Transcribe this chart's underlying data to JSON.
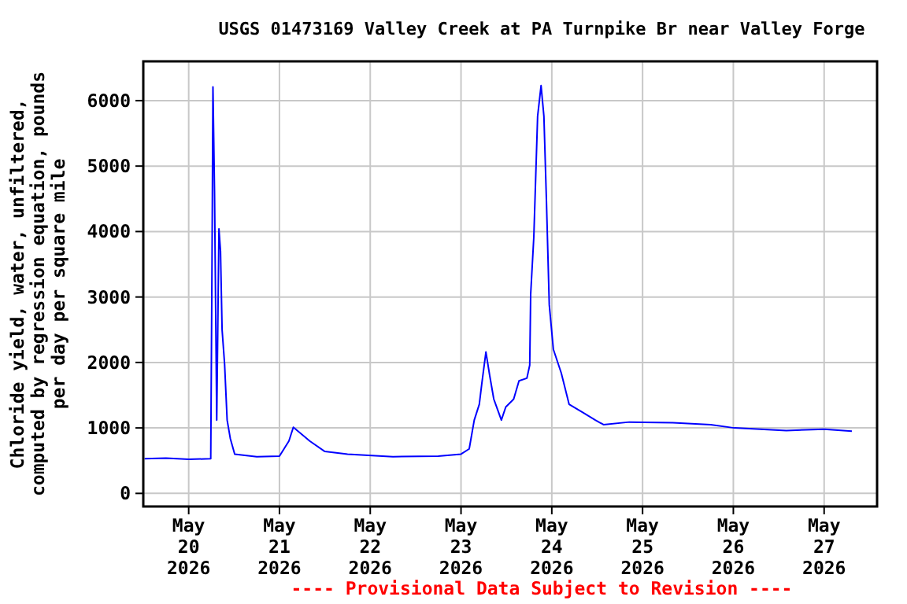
{
  "chart_data": {
    "type": "line",
    "title": "USGS 01473169 Valley Creek at PA Turnpike Br near Valley Forge",
    "ylabel": "Chloride yield, water, unfiltered,\ncomputed by regression equation, pounds\nper day per square mile",
    "annotations": [
      "---- Provisional Data Subject to Revision ----"
    ],
    "x": [
      "2026-05-19T12:20",
      "2026-05-19T18:00",
      "2026-05-20T00:00",
      "2026-05-20T05:50",
      "2026-05-20T06:10",
      "2026-05-20T06:25",
      "2026-05-20T06:50",
      "2026-05-20T07:25",
      "2026-05-20T08:00",
      "2026-05-20T08:25",
      "2026-05-20T08:50",
      "2026-05-20T09:30",
      "2026-05-20T10:10",
      "2026-05-20T11:00",
      "2026-05-20T12:10",
      "2026-05-20T18:00",
      "2026-05-21T00:00",
      "2026-05-21T02:30",
      "2026-05-21T03:40",
      "2026-05-21T08:00",
      "2026-05-21T12:00",
      "2026-05-21T18:00",
      "2026-05-22T06:00",
      "2026-05-22T18:00",
      "2026-05-23T00:00",
      "2026-05-23T02:10",
      "2026-05-23T03:30",
      "2026-05-23T04:50",
      "2026-05-23T05:30",
      "2026-05-23T06:35",
      "2026-05-23T07:35",
      "2026-05-23T08:40",
      "2026-05-23T10:40",
      "2026-05-23T11:50",
      "2026-05-23T13:55",
      "2026-05-23T15:20",
      "2026-05-23T17:25",
      "2026-05-23T18:10",
      "2026-05-23T18:25",
      "2026-05-23T19:15",
      "2026-05-23T20:15",
      "2026-05-23T21:10",
      "2026-05-23T21:55",
      "2026-05-23T22:35",
      "2026-05-23T23:20",
      "2026-05-24T00:25",
      "2026-05-24T02:30",
      "2026-05-24T04:35",
      "2026-05-24T08:05",
      "2026-05-24T11:30",
      "2026-05-24T13:40",
      "2026-05-24T20:30",
      "2026-05-25T08:00",
      "2026-05-25T18:00",
      "2026-05-26T00:15",
      "2026-05-26T14:00",
      "2026-05-27T00:00",
      "2026-05-27T07:20"
    ],
    "series": [
      {
        "color": "#0000ff",
        "values": [
          530,
          540,
          520,
          530,
          3500,
          6210,
          4600,
          1120,
          4040,
          3700,
          2500,
          1970,
          1120,
          840,
          600,
          560,
          570,
          800,
          1010,
          800,
          640,
          600,
          560,
          570,
          600,
          680,
          1120,
          1360,
          1680,
          2160,
          1800,
          1440,
          1120,
          1320,
          1440,
          1720,
          1760,
          1960,
          3040,
          3920,
          5760,
          6230,
          5760,
          4470,
          2880,
          2200,
          1840,
          1360,
          1240,
          1120,
          1050,
          1090,
          1080,
          1050,
          1000,
          960,
          980,
          950
        ]
      }
    ],
    "ylim": [
      -200,
      6600
    ],
    "yticks": [
      0,
      1000,
      2000,
      3000,
      4000,
      5000,
      6000
    ],
    "xlim": [
      "2026-05-19T12:00",
      "2026-05-27T14:00"
    ],
    "xticks": [
      {
        "value": "2026-05-20",
        "label": "May\n20\n2026"
      },
      {
        "value": "2026-05-21",
        "label": "May\n21\n2026"
      },
      {
        "value": "2026-05-22",
        "label": "May\n22\n2026"
      },
      {
        "value": "2026-05-23",
        "label": "May\n23\n2026"
      },
      {
        "value": "2026-05-24",
        "label": "May\n24\n2026"
      },
      {
        "value": "2026-05-25",
        "label": "May\n25\n2026"
      },
      {
        "value": "2026-05-26",
        "label": "May\n26\n2026"
      },
      {
        "value": "2026-05-27",
        "label": "May\n27\n2026"
      }
    ],
    "grid": true,
    "marker": "none",
    "line_style": "solid"
  }
}
